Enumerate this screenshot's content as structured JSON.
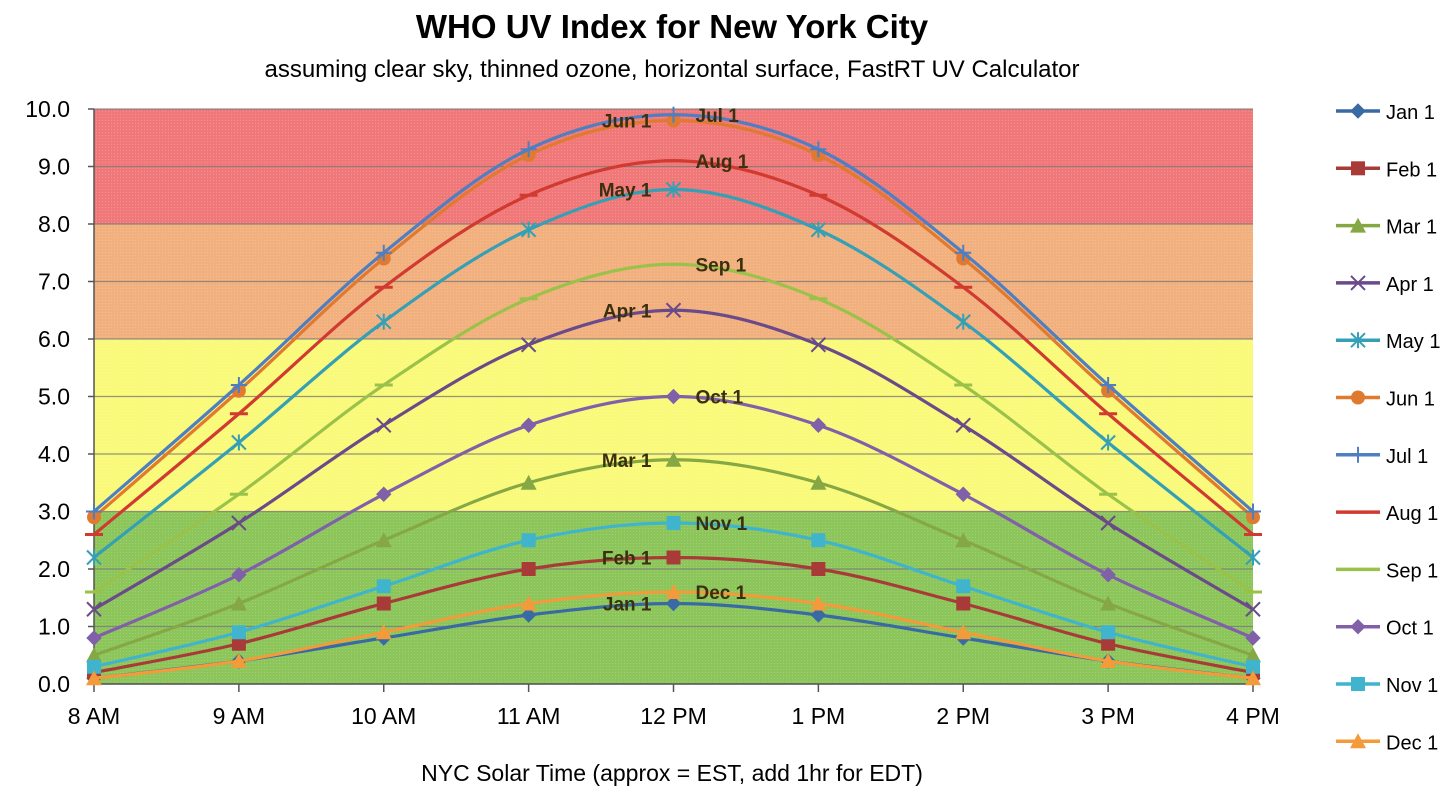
{
  "chart_data": {
    "type": "line",
    "title": "WHO UV Index for New York City",
    "subtitle": "assuming clear sky, thinned ozone, horizontal surface, FastRT UV Calculator",
    "xlabel": "NYC Solar Time (approx = EST, add 1hr for EDT)",
    "ylabel": "",
    "ylim": [
      0,
      10
    ],
    "yticks": [
      "0.0",
      "1.0",
      "2.0",
      "3.0",
      "4.0",
      "5.0",
      "6.0",
      "7.0",
      "8.0",
      "9.0",
      "10.0"
    ],
    "categories": [
      "8 AM",
      "9 AM",
      "10 AM",
      "11 AM",
      "12 PM",
      "1 PM",
      "2 PM",
      "3 PM",
      "4 PM"
    ],
    "grid": true,
    "legend_position": "right",
    "bands": [
      {
        "from": 0,
        "to": 3,
        "color": "#8cc65a"
      },
      {
        "from": 3,
        "to": 6,
        "color": "#fafa7a"
      },
      {
        "from": 6,
        "to": 8,
        "color": "#f2b07e"
      },
      {
        "from": 8,
        "to": 10,
        "color": "#f07878"
      }
    ],
    "series": [
      {
        "name": "Jan 1",
        "values": [
          0.1,
          0.4,
          0.8,
          1.2,
          1.4,
          1.2,
          0.8,
          0.4,
          0.1
        ],
        "color": "#3a6aa3",
        "marker": "diamond"
      },
      {
        "name": "Feb 1",
        "values": [
          0.2,
          0.7,
          1.4,
          2.0,
          2.2,
          2.0,
          1.4,
          0.7,
          0.2
        ],
        "color": "#a83a38",
        "marker": "square"
      },
      {
        "name": "Mar 1",
        "values": [
          0.5,
          1.4,
          2.5,
          3.5,
          3.9,
          3.5,
          2.5,
          1.4,
          0.5
        ],
        "color": "#86a844",
        "marker": "triangle"
      },
      {
        "name": "Apr 1",
        "values": [
          1.3,
          2.8,
          4.5,
          5.9,
          6.5,
          5.9,
          4.5,
          2.8,
          1.3
        ],
        "color": "#6b4a8a",
        "marker": "x"
      },
      {
        "name": "May 1",
        "values": [
          2.2,
          4.2,
          6.3,
          7.9,
          8.6,
          7.9,
          6.3,
          4.2,
          2.2
        ],
        "color": "#35a0b5",
        "marker": "star"
      },
      {
        "name": "Jun 1",
        "values": [
          2.9,
          5.1,
          7.4,
          9.2,
          9.8,
          9.2,
          7.4,
          5.1,
          2.9
        ],
        "color": "#e07a30",
        "marker": "circle"
      },
      {
        "name": "Jul 1",
        "values": [
          3.0,
          5.2,
          7.5,
          9.3,
          9.9,
          9.3,
          7.5,
          5.2,
          3.0
        ],
        "color": "#4f7fc0",
        "marker": "plus"
      },
      {
        "name": "Aug 1",
        "values": [
          2.6,
          4.7,
          6.9,
          8.5,
          9.1,
          8.5,
          6.9,
          4.7,
          2.6
        ],
        "color": "#d03a30",
        "marker": "dash"
      },
      {
        "name": "Sep 1",
        "values": [
          1.6,
          3.3,
          5.2,
          6.7,
          7.3,
          6.7,
          5.2,
          3.3,
          1.6
        ],
        "color": "#9ac24a",
        "marker": "dash"
      },
      {
        "name": "Oct 1",
        "values": [
          0.8,
          1.9,
          3.3,
          4.5,
          5.0,
          4.5,
          3.3,
          1.9,
          0.8
        ],
        "color": "#8060a8",
        "marker": "diamond"
      },
      {
        "name": "Nov 1",
        "values": [
          0.3,
          0.9,
          1.7,
          2.5,
          2.8,
          2.5,
          1.7,
          0.9,
          0.3
        ],
        "color": "#3fb4cc",
        "marker": "square"
      },
      {
        "name": "Dec 1",
        "values": [
          0.1,
          0.4,
          0.9,
          1.4,
          1.6,
          1.4,
          0.9,
          0.4,
          0.1
        ],
        "color": "#f39a3a",
        "marker": "triangle"
      }
    ],
    "annotations": [
      {
        "text": "Jul 1",
        "series": "Jul 1",
        "side": "right"
      },
      {
        "text": "Jun 1",
        "series": "Jun 1",
        "side": "left"
      },
      {
        "text": "Aug 1",
        "series": "Aug 1",
        "side": "right"
      },
      {
        "text": "May 1",
        "series": "May 1",
        "side": "left"
      },
      {
        "text": "Sep 1",
        "series": "Sep 1",
        "side": "right"
      },
      {
        "text": "Apr 1",
        "series": "Apr 1",
        "side": "left"
      },
      {
        "text": "Oct 1",
        "series": "Oct 1",
        "side": "right"
      },
      {
        "text": "Mar 1",
        "series": "Mar 1",
        "side": "left"
      },
      {
        "text": "Nov 1",
        "series": "Nov 1",
        "side": "right"
      },
      {
        "text": "Feb 1",
        "series": "Feb 1",
        "side": "left"
      },
      {
        "text": "Dec 1",
        "series": "Dec 1",
        "side": "right"
      },
      {
        "text": "Jan 1",
        "series": "Jan 1",
        "side": "left"
      }
    ]
  }
}
